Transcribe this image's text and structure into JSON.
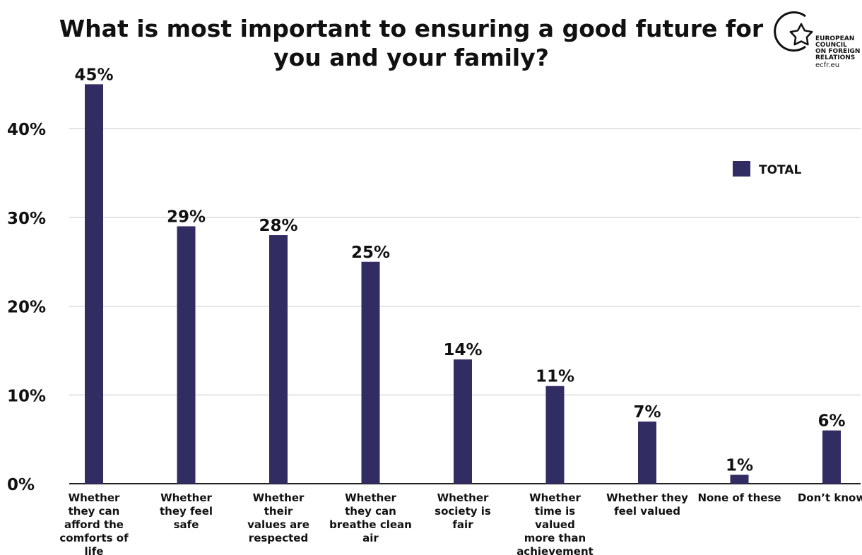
{
  "chart_data": {
    "type": "bar",
    "title": "What is most important to ensuring a good future for you and your family?",
    "title_lines": [
      "What is most important to ensuring a good future for",
      "you and your family?"
    ],
    "categories": [
      "Whether they can afford the comforts of life",
      "Whether they feel safe",
      "Whether their values are respected",
      "Whether they can breathe clean air",
      "Whether society is fair",
      "Whether time is valued more than achievement",
      "Whether they feel valued",
      "None of these",
      "Don't know"
    ],
    "category_lines": [
      [
        "Whether",
        "they can",
        "afford the",
        "comforts of",
        "life"
      ],
      [
        "Whether",
        "they feel",
        "safe"
      ],
      [
        "Whether",
        "their",
        "values are",
        "respected"
      ],
      [
        "Whether",
        "they can",
        "breathe clean",
        "air"
      ],
      [
        "Whether",
        "society is",
        "fair"
      ],
      [
        "Whether",
        "time is",
        "valued",
        "more than",
        "achievement"
      ],
      [
        "Whether they",
        "feel valued"
      ],
      [
        "None of these"
      ],
      [
        "Don’t know"
      ]
    ],
    "series": [
      {
        "name": "TOTAL",
        "color": "#312c62",
        "values": [
          45,
          29,
          28,
          25,
          14,
          11,
          7,
          1,
          6
        ]
      }
    ],
    "data_labels": [
      "45%",
      "29%",
      "28%",
      "25%",
      "14%",
      "11%",
      "7%",
      "1%",
      "6%"
    ],
    "y_ticks": [
      0,
      10,
      20,
      30,
      40
    ],
    "y_tick_labels": [
      "0%",
      "10%",
      "20%",
      "30%",
      "40%"
    ],
    "ylim": [
      0,
      45
    ],
    "xlabel": "",
    "ylabel": "",
    "grid": true,
    "legend_position": "top-right"
  },
  "branding": {
    "org_lines": [
      "EUROPEAN",
      "COUNCIL",
      "ON FOREIGN",
      "RELATIONS"
    ],
    "url": "ecfr.eu"
  }
}
